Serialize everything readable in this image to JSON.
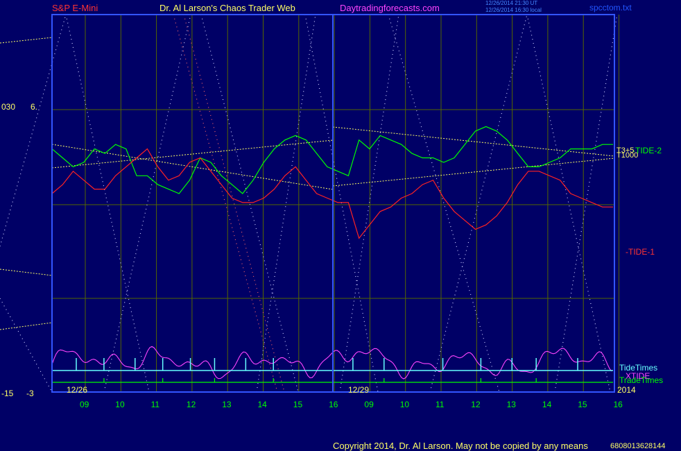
{
  "header": {
    "symbol": "S&P E-Mini",
    "site": "Dr. Al Larson's Chaos Trader Web",
    "website": "Daytradingforecasts.com",
    "stamp1": "12/26/2014 21:30 UT",
    "stamp2": "12/26/2014 16:30 local",
    "file": "spcctom.txt"
  },
  "left_labels": {
    "top_a": "030",
    "top_b": "6.",
    "bot_a": "-15",
    "bot_b": "-3"
  },
  "footer": {
    "copyright": "Copyright 2014, Dr. Al Larson. May not be copied by any means",
    "serial": "6808013628144"
  },
  "chart_data": {
    "type": "line",
    "dates": [
      "12/26",
      "12/29"
    ],
    "year": "2014",
    "x": [
      [
        0.0,
        8.5
      ],
      [
        0.33,
        9
      ],
      [
        0.67,
        9.5
      ],
      [
        1.0,
        10
      ],
      [
        1.33,
        10.5
      ],
      [
        1.67,
        11
      ],
      [
        2.0,
        11.5
      ],
      [
        2.33,
        12
      ],
      [
        2.67,
        12.5
      ],
      [
        3.0,
        13
      ],
      [
        3.33,
        13.5
      ],
      [
        3.67,
        14
      ],
      [
        4.0,
        14.5
      ],
      [
        4.33,
        15
      ],
      [
        4.67,
        15.5
      ],
      [
        5.0,
        16
      ]
    ],
    "hour_ticks": [
      {
        "label": "09",
        "t": 0.5
      },
      {
        "label": "10",
        "t": 1.5
      },
      {
        "label": "11",
        "t": 2.5
      },
      {
        "label": "12",
        "t": 3.5
      },
      {
        "label": "13",
        "t": 4.5
      },
      {
        "label": "14",
        "t": 5.5
      },
      {
        "label": "15",
        "t": 6.5
      },
      {
        "label": "16",
        "t": 7.5
      },
      {
        "label": "09",
        "t": 8.5
      },
      {
        "label": "10",
        "t": 9.5
      },
      {
        "label": "11",
        "t": 10.5
      },
      {
        "label": "12",
        "t": 11.5
      },
      {
        "label": "13",
        "t": 12.5
      },
      {
        "label": "14",
        "t": 13.5
      },
      {
        "label": "15",
        "t": 14.5
      },
      {
        "label": "16",
        "t": 15.5
      }
    ],
    "x_range": [
      0,
      15.9
    ],
    "y_range": [
      -15,
      30
    ],
    "right_labels": {
      "t3": "T3+5",
      "t1000": "T1000"
    },
    "series": [
      {
        "name": "-TIDE-2",
        "color": "#00ff00",
        "t": [
          0,
          0.3,
          0.6,
          0.9,
          1.2,
          1.5,
          1.8,
          2.1,
          2.4,
          2.7,
          3.0,
          3.3,
          3.6,
          3.9,
          4.2,
          4.5,
          4.8,
          5.1,
          5.4,
          5.7,
          6.0,
          6.3,
          6.6,
          6.9,
          7.2,
          7.5,
          7.8,
          8.1,
          8.4,
          8.7,
          9.0,
          9.3,
          9.6,
          9.9,
          10.2,
          10.5,
          10.8,
          11.1,
          11.4,
          11.7,
          12.0,
          12.3,
          12.6,
          12.9,
          13.2,
          13.5,
          13.8,
          14.1,
          14.4,
          14.7,
          15.0,
          15.3,
          15.6,
          15.9
        ],
        "v": [
          20,
          18,
          16,
          17,
          20,
          19,
          21,
          20,
          14,
          14,
          12,
          11,
          10,
          13,
          18,
          17,
          14,
          12,
          10,
          13,
          17,
          20,
          22,
          23,
          22,
          19,
          16,
          15,
          14,
          22,
          20,
          23,
          22,
          21,
          19,
          18,
          18,
          17,
          18,
          21,
          24,
          25,
          24,
          22,
          19,
          16,
          16,
          17,
          18,
          20,
          20,
          20,
          21,
          21
        ]
      },
      {
        "name": "-TIDE-1",
        "color": "#ff2222",
        "t": [
          0,
          0.3,
          0.6,
          0.9,
          1.2,
          1.5,
          1.8,
          2.1,
          2.4,
          2.7,
          3.0,
          3.3,
          3.6,
          3.9,
          4.2,
          4.5,
          4.8,
          5.1,
          5.4,
          5.7,
          6.0,
          6.3,
          6.6,
          6.9,
          7.2,
          7.5,
          7.8,
          8.1,
          8.4,
          8.7,
          9.0,
          9.3,
          9.6,
          9.9,
          10.2,
          10.5,
          10.8,
          11.1,
          11.4,
          11.7,
          12.0,
          12.3,
          12.6,
          12.9,
          13.2,
          13.5,
          13.8,
          14.1,
          14.4,
          14.7,
          15.0,
          15.3,
          15.6,
          15.9
        ],
        "v": [
          10,
          12,
          15,
          13,
          11,
          11,
          14,
          16,
          18,
          20,
          16,
          13,
          14,
          17,
          18,
          15,
          12,
          9,
          8,
          8,
          9,
          11,
          14,
          16,
          13,
          10,
          9,
          8,
          8,
          0,
          3,
          6,
          7,
          9,
          10,
          12,
          13,
          9,
          6,
          4,
          2,
          3,
          5,
          8,
          12,
          15,
          15,
          14,
          13,
          10,
          9,
          8,
          7,
          7
        ]
      },
      {
        "name": "XTIDE",
        "color": "#ff44ff",
        "role": "oscillator"
      }
    ],
    "tide_times": {
      "name": "TideTimes",
      "color": "#66ffff",
      "marks": [
        0.6,
        1.4,
        2.3,
        3.1,
        3.9,
        4.6,
        5.5,
        6.3,
        8.6,
        9.5,
        11.2,
        12.3,
        13.2,
        13.9,
        15.1
      ]
    },
    "trade_times": {
      "name": "TradeTimes",
      "color": "#00ff00",
      "marks": [
        1.4,
        3.1,
        4.6,
        6.3,
        9.5,
        12.3,
        13.9
      ]
    },
    "grid": true,
    "legend": "right"
  }
}
